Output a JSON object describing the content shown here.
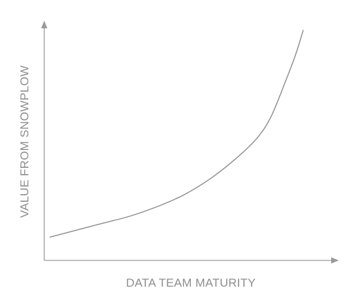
{
  "chart_data": {
    "type": "line",
    "title": "",
    "xlabel": "DATA TEAM MATURITY",
    "ylabel": "VALUE FROM SNOWPLOW",
    "xlim": [
      0,
      1
    ],
    "ylim": [
      0,
      1
    ],
    "grid": false,
    "legend": "none",
    "x_ticks_labeled": false,
    "y_ticks_labeled": false,
    "series": [
      {
        "values": [
          {
            "x": 0.0,
            "y": 0.1
          },
          {
            "x": 0.1,
            "y": 0.13
          },
          {
            "x": 0.2,
            "y": 0.16
          },
          {
            "x": 0.3,
            "y": 0.19
          },
          {
            "x": 0.4,
            "y": 0.23
          },
          {
            "x": 0.5,
            "y": 0.28
          },
          {
            "x": 0.6,
            "y": 0.35
          },
          {
            "x": 0.7,
            "y": 0.44
          },
          {
            "x": 0.78,
            "y": 0.53
          },
          {
            "x": 0.83,
            "y": 0.62
          },
          {
            "x": 0.88,
            "y": 0.76
          },
          {
            "x": 0.92,
            "y": 0.88
          },
          {
            "x": 0.95,
            "y": 0.99
          }
        ]
      }
    ],
    "colors": {
      "axis": "#9a9a9a",
      "line": "#8c8c8c",
      "text": "#8e8e8e"
    }
  }
}
